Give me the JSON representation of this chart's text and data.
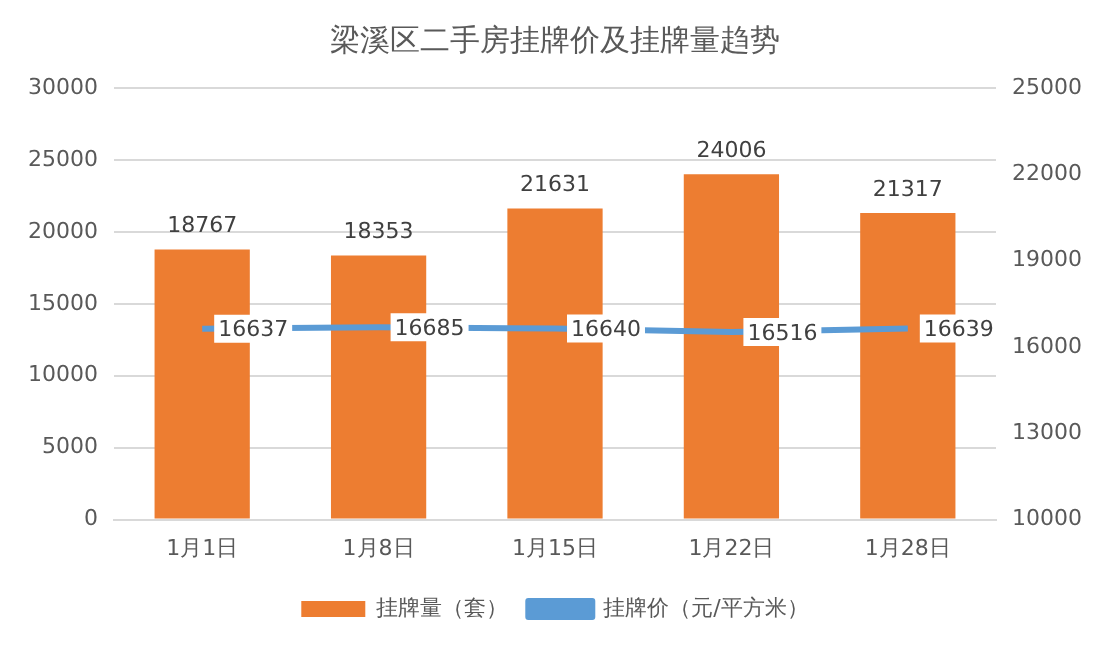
{
  "chart_data": {
    "type": "bar",
    "title": "梁溪区二手房挂牌价及挂牌量趋势",
    "categories": [
      "1月1日",
      "1月8日",
      "1月15日",
      "1月22日",
      "1月28日"
    ],
    "series": [
      {
        "name": "挂牌量（套）",
        "color": "#ed7d31",
        "values": [
          18767,
          18353,
          21631,
          24006,
          21317
        ]
      },
      {
        "name": "挂牌价（元/平方米）",
        "type": "line",
        "axis": "y2",
        "color": "#5b9bd5",
        "values": [
          16637,
          16685,
          16640,
          16516,
          16639
        ]
      }
    ],
    "ylim": [
      0,
      30000
    ],
    "yticks": [
      0,
      5000,
      10000,
      15000,
      20000,
      25000,
      30000
    ],
    "y2lim": [
      10000,
      25000
    ],
    "y2ticks": [
      10000,
      13000,
      16000,
      19000,
      22000,
      25000
    ],
    "grid": "y",
    "legend": "bottom",
    "data_labels": true,
    "marker": "none"
  }
}
